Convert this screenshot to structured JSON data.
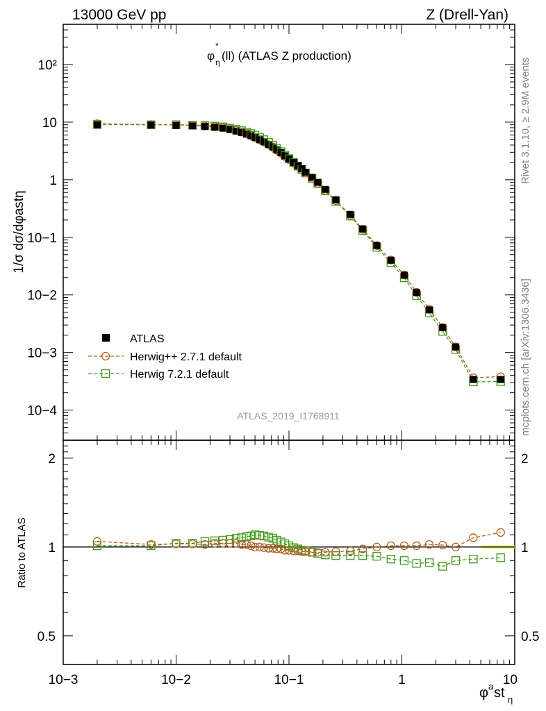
{
  "header": {
    "left": "13000 GeV pp",
    "right": "Z (Drell-Yan)"
  },
  "side_labels": {
    "rivet": "Rivet 3.1.10, ≥ 2.9M events",
    "mcplots": "mcplots.cern.ch [arXiv:1306.3436]"
  },
  "colors": {
    "data": "#000000",
    "herwig_pp": "#b35f1e",
    "herwig7": "#3f9a1c",
    "band": "#ecf26a"
  },
  "chart_data": {
    "type": "scatter",
    "title": "φ*η(ll) (ATLAS Z production)",
    "title_parts": {
      "base": "φ",
      "sup": "*",
      "sub": "η",
      "rest": "(ll) (ATLAS Z production)"
    },
    "watermark": "ATLAS_2019_I1768911",
    "xlabel": "φastη",
    "xlabel_parts": {
      "base": "φ",
      "sup": "a",
      "mid": "st",
      "sub": "η"
    },
    "ylabel": "1/σ dσ/dφastη",
    "ratio_ylabel": "Ratio to ATLAS",
    "xscale": "log",
    "xlim": [
      0.001,
      10
    ],
    "ylim": [
      3e-05,
      500
    ],
    "ratio_ylim": [
      0.4,
      2.3
    ],
    "x_tick_labels": [
      "10−3",
      "10−2",
      "10−1",
      "1",
      "10"
    ],
    "y_tick_labels": [
      "10−4",
      "10−3",
      "10−2",
      "10−1",
      "1",
      "10",
      "10²"
    ],
    "ratio_tick_labels": [
      "0.5",
      "1",
      "2"
    ],
    "legend_position": "lower-left",
    "x": [
      0.002,
      0.006,
      0.01,
      0.014,
      0.018,
      0.022,
      0.026,
      0.03,
      0.034,
      0.038,
      0.042,
      0.046,
      0.05,
      0.055,
      0.06,
      0.066,
      0.072,
      0.078,
      0.085,
      0.092,
      0.1,
      0.11,
      0.12,
      0.13,
      0.14,
      0.16,
      0.18,
      0.21,
      0.26,
      0.35,
      0.45,
      0.6,
      0.8,
      1.05,
      1.35,
      1.75,
      2.3,
      3.0,
      4.3,
      7.5
    ],
    "series": [
      {
        "name": "ATLAS",
        "marker": "square-filled",
        "values": [
          9.0,
          8.9,
          8.75,
          8.6,
          8.4,
          8.15,
          7.85,
          7.45,
          7.0,
          6.6,
          6.2,
          5.8,
          5.4,
          4.95,
          4.55,
          4.1,
          3.7,
          3.3,
          2.95,
          2.6,
          2.3,
          2.0,
          1.75,
          1.55,
          1.35,
          1.1,
          0.9,
          0.68,
          0.45,
          0.25,
          0.14,
          0.072,
          0.04,
          0.022,
          0.011,
          0.0055,
          0.0027,
          0.00125,
          0.00034,
          0.00034
        ]
      },
      {
        "name": "Herwig++ 2.7.1 default",
        "marker": "circle-open",
        "ratio": [
          1.045,
          1.02,
          1.025,
          1.025,
          1.02,
          1.03,
          1.03,
          1.03,
          1.03,
          1.02,
          1.02,
          1.01,
          1.0,
          1.0,
          0.995,
          0.99,
          0.99,
          0.985,
          0.985,
          0.975,
          0.975,
          0.97,
          0.97,
          0.965,
          0.965,
          0.96,
          0.96,
          0.96,
          0.965,
          0.97,
          0.985,
          1.0,
          1.01,
          1.01,
          1.01,
          1.02,
          1.015,
          1.0,
          1.075,
          1.12
        ]
      },
      {
        "name": "Herwig 7.2.1 default",
        "marker": "square-open",
        "ratio": [
          1.01,
          1.01,
          1.03,
          1.03,
          1.045,
          1.05,
          1.055,
          1.06,
          1.07,
          1.075,
          1.085,
          1.09,
          1.1,
          1.095,
          1.09,
          1.08,
          1.07,
          1.055,
          1.04,
          1.025,
          1.01,
          0.995,
          0.985,
          0.975,
          0.97,
          0.96,
          0.95,
          0.94,
          0.935,
          0.935,
          0.935,
          0.93,
          0.91,
          0.9,
          0.88,
          0.885,
          0.86,
          0.9,
          0.91,
          0.92
        ]
      }
    ]
  }
}
